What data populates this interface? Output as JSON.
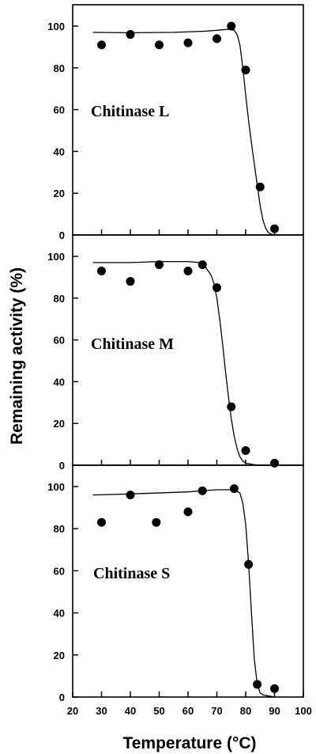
{
  "figure": {
    "ylabel": "Remaining activity (%)",
    "xlabel": "Temperature (°C)"
  },
  "chart_data": [
    {
      "type": "scatter",
      "title": "Chitinase L",
      "x": [
        30,
        40,
        50,
        60,
        70,
        75,
        80,
        85,
        90
      ],
      "y": [
        91,
        96,
        91,
        92,
        94,
        100,
        79,
        23,
        3
      ],
      "fit_curve": {
        "x": [
          27,
          40,
          55,
          65,
          70,
          74,
          76,
          77,
          78,
          79,
          80,
          81,
          82,
          83,
          84,
          85,
          86,
          87,
          88,
          89,
          90
        ],
        "y": [
          97,
          96.8,
          97,
          97.5,
          98,
          98.5,
          98,
          96,
          91,
          80,
          67,
          55,
          44,
          34,
          24,
          14,
          7,
          3,
          1,
          0.3,
          0
        ]
      },
      "xlim": [
        20,
        100
      ],
      "ylim": [
        0,
        100
      ],
      "yticks": [
        0,
        20,
        40,
        60,
        80,
        100
      ]
    },
    {
      "type": "scatter",
      "title": "Chitinase M",
      "x": [
        30,
        40,
        50,
        60,
        65,
        70,
        75,
        80,
        90
      ],
      "y": [
        93,
        88,
        96,
        93,
        96,
        85,
        28,
        7,
        1
      ],
      "fit_curve": {
        "x": [
          27,
          40,
          50,
          60,
          64,
          66,
          68,
          69,
          70,
          71,
          72,
          73,
          74,
          75,
          76,
          77,
          78,
          79,
          80,
          82,
          84,
          90
        ],
        "y": [
          97,
          97,
          97.5,
          97.5,
          97,
          95,
          91,
          87,
          80,
          70,
          58,
          45,
          33,
          22,
          14,
          8,
          4,
          2,
          1,
          0.5,
          0,
          0
        ]
      },
      "xlim": [
        20,
        100
      ],
      "ylim": [
        0,
        100
      ],
      "yticks": [
        0,
        20,
        40,
        60,
        80,
        100
      ]
    },
    {
      "type": "scatter",
      "title": "Chitinase S",
      "x": [
        30,
        40,
        49,
        60,
        65,
        76,
        81,
        84,
        90
      ],
      "y": [
        83,
        96,
        83,
        88,
        98,
        99,
        63,
        6,
        4
      ],
      "fit_curve": {
        "x": [
          27,
          40,
          60,
          70,
          76,
          78,
          79,
          80,
          81,
          82,
          83,
          84,
          85,
          86,
          88,
          90
        ],
        "y": [
          96,
          96.5,
          97.5,
          98.5,
          98.5,
          97,
          92,
          82,
          64,
          40,
          18,
          6,
          2,
          1,
          0.5,
          0
        ]
      },
      "xlim": [
        20,
        100
      ],
      "ylim": [
        0,
        100
      ],
      "yticks": [
        0,
        20,
        40,
        60,
        80,
        100
      ],
      "xticks": [
        20,
        30,
        40,
        50,
        60,
        70,
        80,
        90,
        100
      ]
    }
  ]
}
